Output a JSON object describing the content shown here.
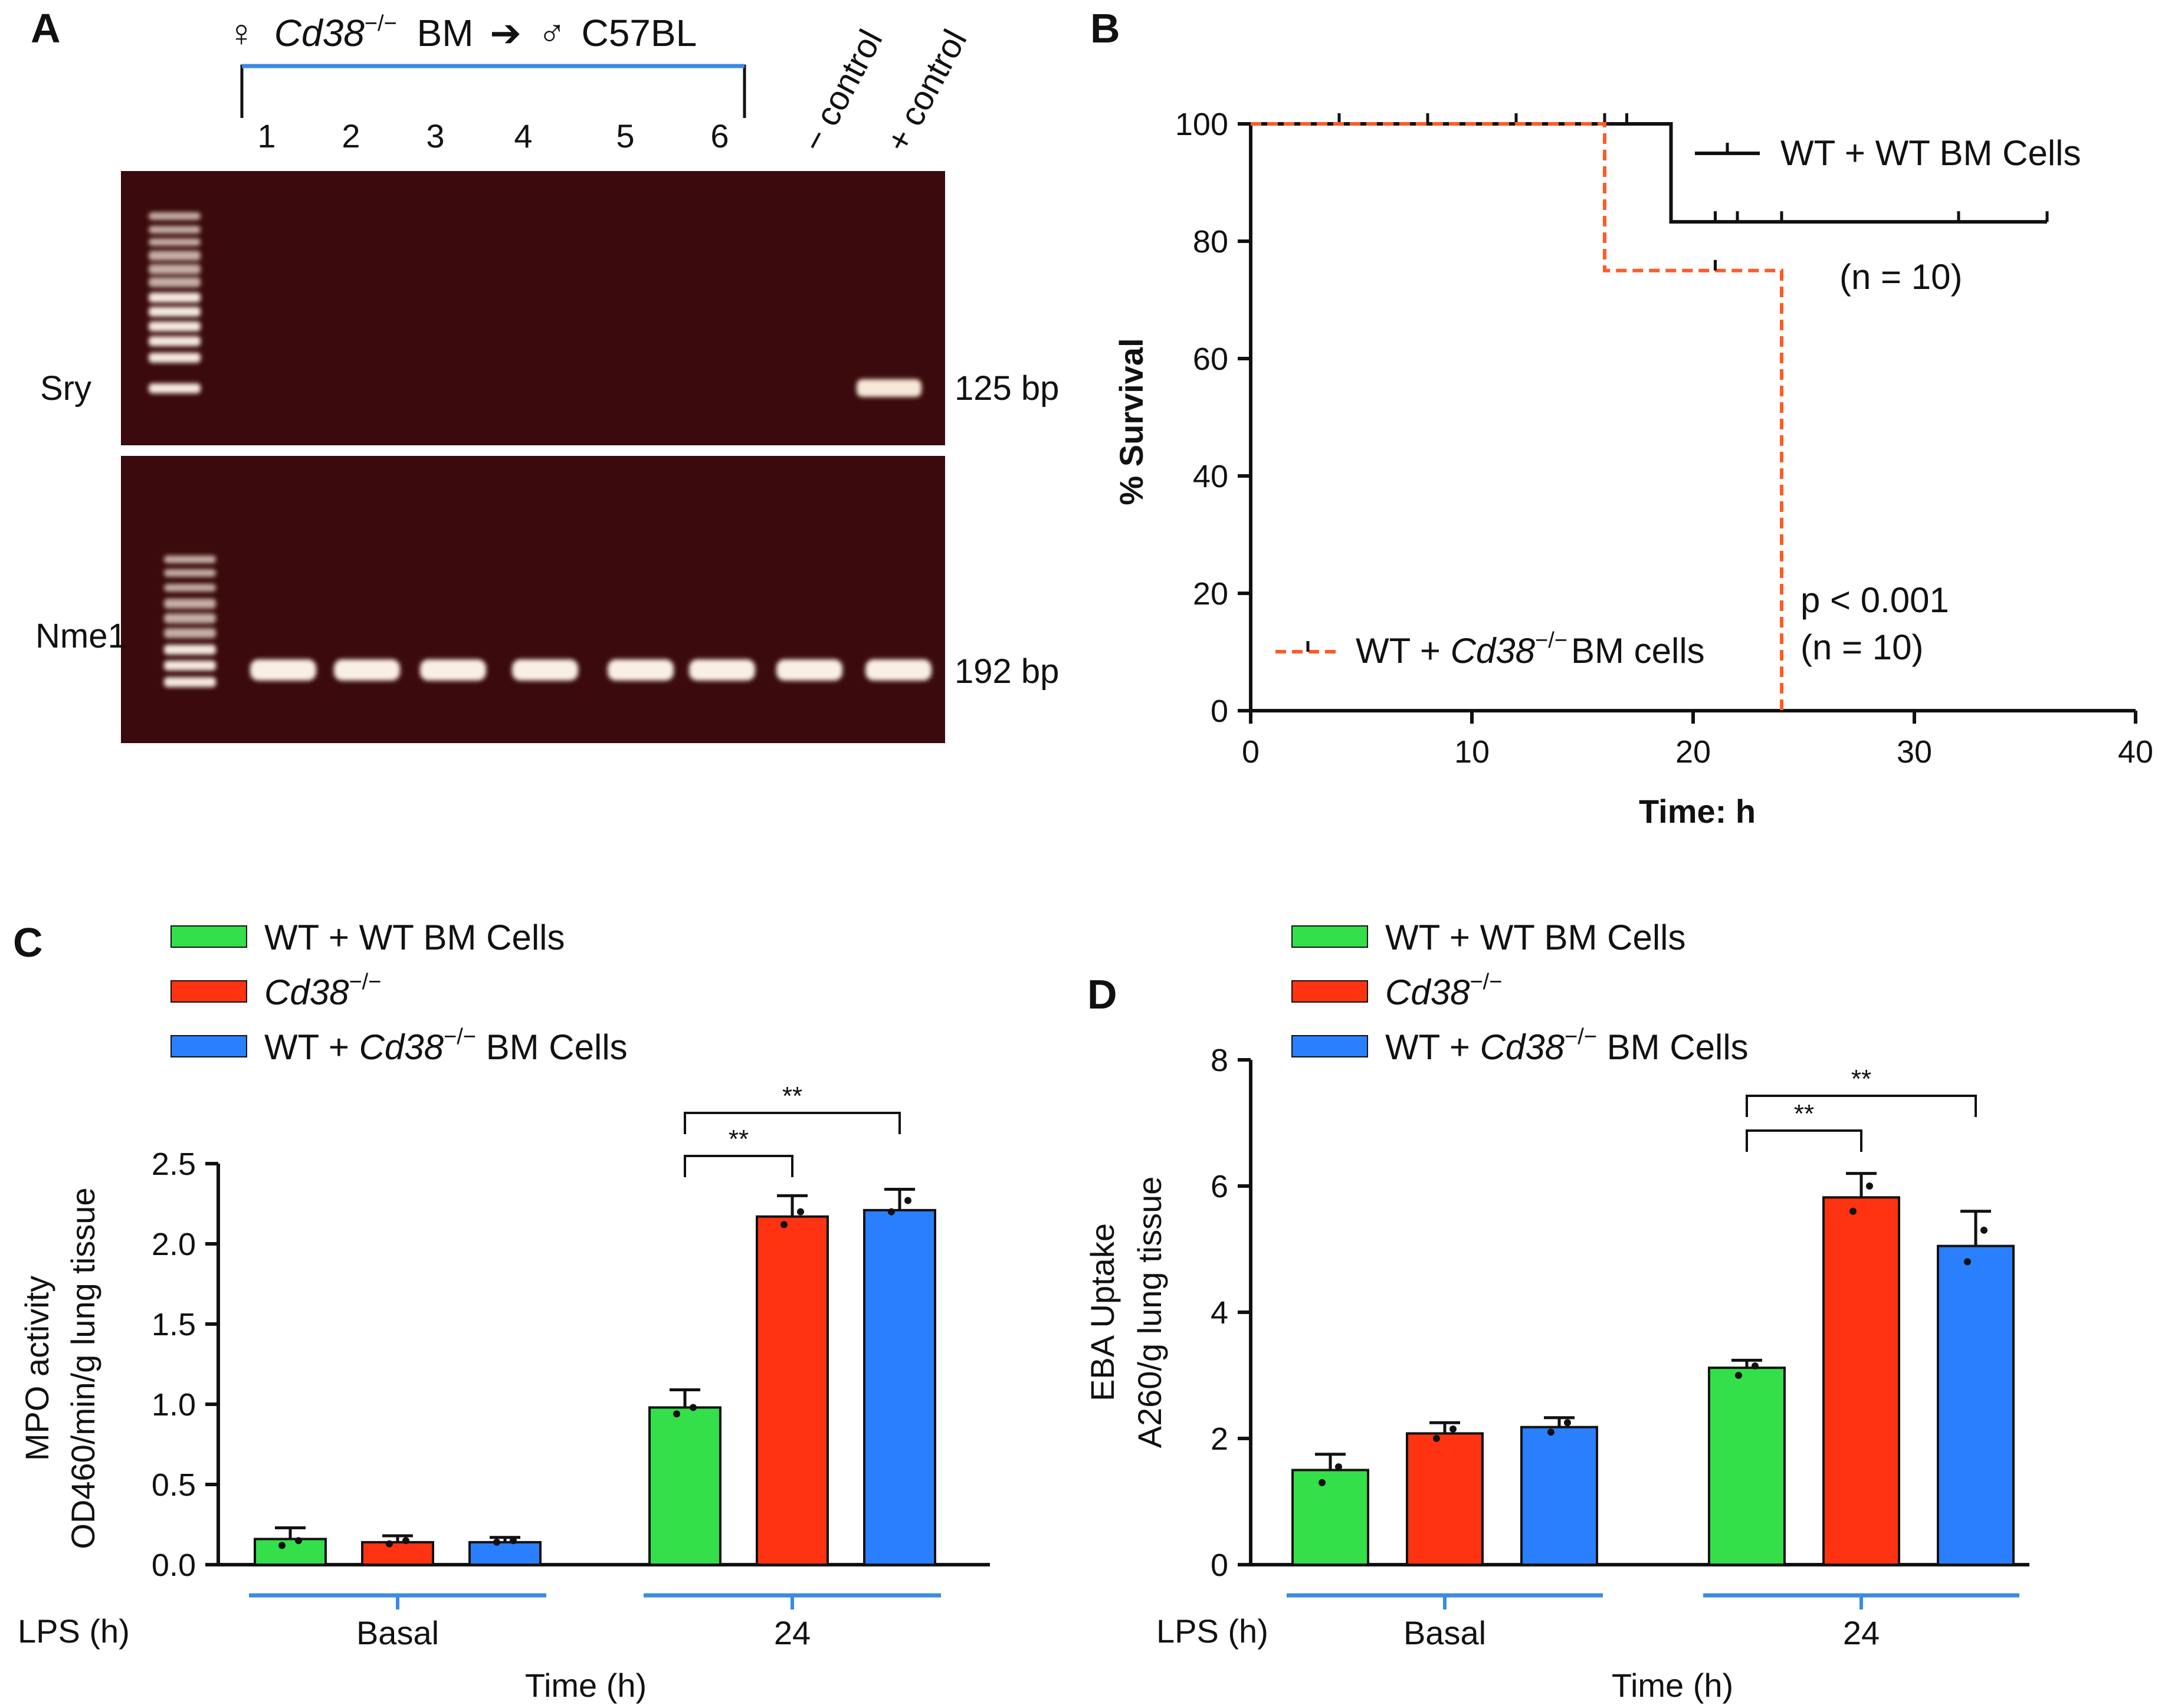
{
  "colors": {
    "green": "#33e04a",
    "red": "#ff3311",
    "blue": "#2a7fff",
    "bracket_blue": "#3a8ae6",
    "km_red": "#ff5a2a",
    "black": "#111111"
  },
  "panel_a": {
    "label": "A",
    "title_symbol_female": "♀",
    "title_strain": "Cd38",
    "title_superscript": "−/−",
    "title_bm": "BM",
    "title_arrow": "➔",
    "title_symbol_male": "♂",
    "title_recipient": "C57BL",
    "lanes": [
      "1",
      "2",
      "3",
      "4",
      "5",
      "6"
    ],
    "neg_control": "− control",
    "pos_control": "+ control",
    "gel_top_label": "Sry",
    "gel_top_size": "125 bp",
    "gel_bottom_label": "Nme1",
    "gel_bottom_size": "192 bp"
  },
  "chart_data": [
    {
      "panel": "B",
      "type": "line",
      "subtype": "kaplan-meier",
      "xlabel": "Time: h",
      "ylabel": "% Survival",
      "xlim": [
        0,
        40
      ],
      "ylim": [
        0,
        100
      ],
      "xticks": [
        "0",
        "10",
        "20",
        "30",
        "40"
      ],
      "yticks": [
        "0",
        "20",
        "40",
        "60",
        "80",
        "100"
      ],
      "series": [
        {
          "name": "WT + WT BM Cells",
          "style": "solid",
          "steps": [
            [
              0,
              100
            ],
            [
              19,
              100
            ],
            [
              19,
              83.3
            ],
            [
              36,
              83.3
            ]
          ],
          "censor_marks": [
            [
              4,
              100
            ],
            [
              8,
              100
            ],
            [
              12,
              100
            ],
            [
              16,
              100
            ],
            [
              17,
              100
            ],
            [
              21,
              83.3
            ],
            [
              22,
              83.3
            ],
            [
              24,
              83.3
            ],
            [
              32,
              83.3
            ],
            [
              36,
              83.3
            ]
          ],
          "n_label": "(n = 10)"
        },
        {
          "name_prefix": "WT + ",
          "name_italic": "Cd38",
          "name_superscript": "−/−",
          "name_suffix": "BM cells",
          "style": "dashed",
          "steps": [
            [
              0,
              100
            ],
            [
              16,
              100
            ],
            [
              16,
              75
            ],
            [
              24,
              75
            ],
            [
              24,
              0
            ]
          ],
          "censor_marks": [
            [
              21,
              75
            ]
          ],
          "n_label": "(n = 10)"
        }
      ],
      "p_value": "p < 0.001"
    },
    {
      "panel": "C",
      "type": "bar",
      "ylabel_line1": "MPO activity",
      "ylabel_line2": "OD460/min/g lung tissue",
      "ylim": [
        0,
        2.5
      ],
      "yticks": [
        "0.0",
        "0.5",
        "1.0",
        "1.5",
        "2.0",
        "2.5"
      ],
      "categories": [
        "Basal",
        "24"
      ],
      "lps_label": "LPS (h)",
      "xlabel": "Time (h)",
      "series": [
        {
          "name": "WT + WT BM Cells",
          "values": [
            0.16,
            0.98
          ],
          "errors": [
            0.07,
            0.11
          ],
          "points": [
            [
              0.12,
              0.15
            ],
            [
              0.94,
              0.98
            ]
          ]
        },
        {
          "name_italic": "Cd38",
          "name_superscript": "−/−",
          "values": [
            0.14,
            2.17
          ],
          "errors": [
            0.04,
            0.13
          ],
          "points": [
            [
              0.13,
              0.15
            ],
            [
              2.12,
              2.2
            ]
          ]
        },
        {
          "name_prefix": "WT + ",
          "name_italic": "Cd38",
          "name_superscript": "−/−",
          "name_suffix": " BM Cells",
          "values": [
            0.14,
            2.21
          ],
          "errors": [
            0.03,
            0.13
          ],
          "points": [
            [
              0.14,
              0.15
            ],
            [
              2.2,
              2.27
            ]
          ]
        }
      ],
      "significance": [
        {
          "from_series": 0,
          "to_series": 1,
          "category": 1,
          "label": "**"
        },
        {
          "from_series": 0,
          "to_series": 2,
          "category": 1,
          "label": "**"
        }
      ]
    },
    {
      "panel": "D",
      "type": "bar",
      "ylabel_line1": "EBA Uptake",
      "ylabel_line2": "A260/g lung tissue",
      "ylim": [
        0,
        8
      ],
      "yticks": [
        "0",
        "2",
        "4",
        "6",
        "8"
      ],
      "categories": [
        "Basal",
        "24"
      ],
      "lps_label": "LPS (h)",
      "xlabel": "Time (h)",
      "series": [
        {
          "name": "WT + WT BM Cells",
          "values": [
            1.5,
            3.12
          ],
          "errors": [
            0.25,
            0.12
          ],
          "points": [
            [
              1.3,
              1.55
            ],
            [
              3.0,
              3.15
            ]
          ]
        },
        {
          "name_italic": "Cd38",
          "name_superscript": "−/−",
          "values": [
            2.08,
            5.82
          ],
          "errors": [
            0.17,
            0.38
          ],
          "points": [
            [
              2.0,
              2.15
            ],
            [
              5.6,
              6.0
            ]
          ]
        },
        {
          "name_prefix": "WT + ",
          "name_italic": "Cd38",
          "name_superscript": "−/−",
          "name_suffix": " BM Cells",
          "values": [
            2.18,
            5.05
          ],
          "errors": [
            0.15,
            0.55
          ],
          "points": [
            [
              2.1,
              2.25
            ],
            [
              4.8,
              5.3
            ]
          ]
        }
      ],
      "significance": [
        {
          "from_series": 0,
          "to_series": 1,
          "category": 1,
          "label": "**"
        },
        {
          "from_series": 0,
          "to_series": 2,
          "category": 1,
          "label": "**"
        }
      ]
    }
  ]
}
